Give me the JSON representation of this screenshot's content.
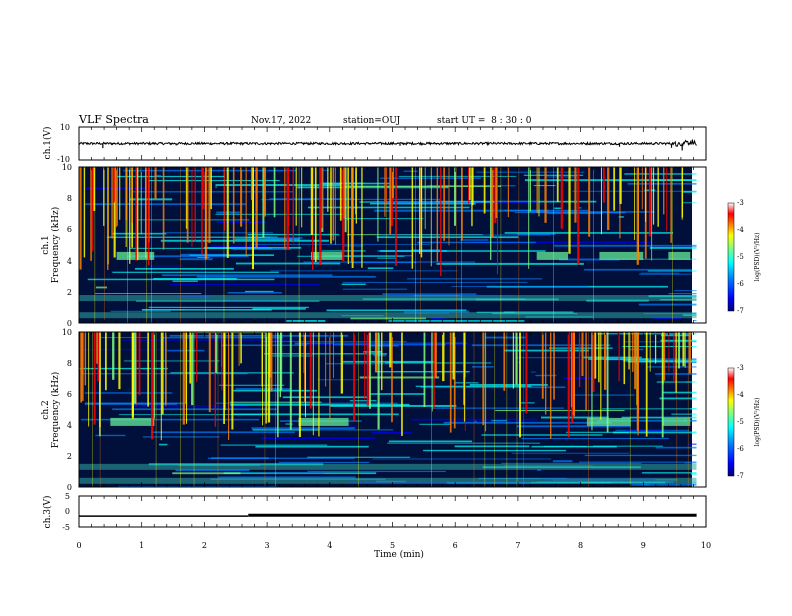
{
  "header": {
    "title": "VLF Spectra",
    "date": "Nov.17, 2022",
    "station": "station=OUJ",
    "start_time": "start UT =  8 : 30 : 0"
  },
  "chart_data": [
    {
      "id": "ch1-waveform",
      "type": "line",
      "ylabel": "ch.1(V)",
      "ylim": [
        -10,
        10
      ],
      "ytick_labels": [
        "10",
        "-10"
      ],
      "x_range_min": [
        0,
        9.85
      ],
      "baseline_v": 0,
      "spikes": [
        {
          "t": 0.38,
          "v": -2.8
        },
        {
          "t": 1.55,
          "v": -1.2
        },
        {
          "t": 5.12,
          "v": -1.4
        },
        {
          "t": 8.62,
          "v": -2.0
        },
        {
          "t": 9.45,
          "v": -2.6
        },
        {
          "t": 9.62,
          "v": -4.2
        },
        {
          "t": 9.78,
          "v": 2.2
        }
      ]
    },
    {
      "id": "ch1-spectrogram",
      "type": "heatmap",
      "ylabel_lines": [
        "ch.1",
        "Frequency (kHz)"
      ],
      "ylim_khz": [
        0,
        10
      ],
      "ytick_labels": [
        "0",
        "2",
        "4",
        "6",
        "8",
        "10"
      ],
      "x_range_min": [
        0,
        9.85
      ],
      "colorbar": {
        "label": "log(PSD)(V²/Hz)",
        "range": [
          -7,
          -3
        ],
        "tick_labels": [
          "-3",
          "-4",
          "-5",
          "-6",
          "-7"
        ]
      },
      "features_khz": [
        {
          "name": "noise band",
          "freq": 4.3,
          "intervals_min": [
            [
              0.6,
              1.2
            ],
            [
              3.7,
              4.2
            ],
            [
              7.3,
              7.8
            ],
            [
              8.3,
              9.0
            ],
            [
              9.4,
              9.75
            ]
          ]
        },
        {
          "name": "noise band",
          "freq": 1.6,
          "intervals_min": [
            [
              0.0,
              9.85
            ]
          ]
        },
        {
          "name": "noise band",
          "freq": 0.5,
          "intervals_min": [
            [
              0.0,
              9.85
            ]
          ]
        }
      ]
    },
    {
      "id": "ch2-spectrogram",
      "type": "heatmap",
      "ylabel_lines": [
        "ch.2",
        "Frequency (kHz)"
      ],
      "ylim_khz": [
        0,
        10
      ],
      "ytick_labels": [
        "0",
        "2",
        "4",
        "6",
        "8",
        "10"
      ],
      "x_range_min": [
        0,
        9.85
      ],
      "colorbar": {
        "label": "log(PSD)(V²/Hz)",
        "range": [
          -7,
          -3
        ],
        "tick_labels": [
          "-3",
          "-4",
          "-5",
          "-6",
          "-7"
        ]
      },
      "features_khz": [
        {
          "name": "noise band",
          "freq": 4.2,
          "intervals_min": [
            [
              0.5,
              1.2
            ],
            [
              3.5,
              4.3
            ],
            [
              8.1,
              8.8
            ],
            [
              9.3,
              9.75
            ]
          ]
        },
        {
          "name": "noise band",
          "freq": 1.3,
          "intervals_min": [
            [
              0.0,
              9.85
            ]
          ]
        },
        {
          "name": "noise band",
          "freq": 0.4,
          "intervals_min": [
            [
              0.0,
              9.85
            ]
          ]
        }
      ]
    },
    {
      "id": "ch3-signal",
      "type": "line",
      "ylabel": "ch.3(V)",
      "ylim": [
        -5,
        5
      ],
      "ytick_labels": [
        "5",
        "0",
        "-5"
      ],
      "x_range_min": [
        0,
        9.85
      ],
      "segments": [
        {
          "from_min": 0.0,
          "to_min": 2.7,
          "v": -1.5
        },
        {
          "from_min": 2.7,
          "to_min": 9.85,
          "v": -1.2
        }
      ]
    }
  ],
  "x_axis": {
    "label": "Time (min)",
    "range": [
      0,
      10
    ],
    "tick_labels": [
      "0",
      "1",
      "2",
      "3",
      "4",
      "5",
      "6",
      "7",
      "8",
      "9",
      "10"
    ]
  },
  "colors": {
    "background": "#ffffff",
    "axis": "#000000",
    "colormap": [
      "#00007f",
      "#0000ff",
      "#007fff",
      "#00ffff",
      "#7fff7f",
      "#ffff00",
      "#ff7f00",
      "#ff0000",
      "#ffffff"
    ]
  }
}
